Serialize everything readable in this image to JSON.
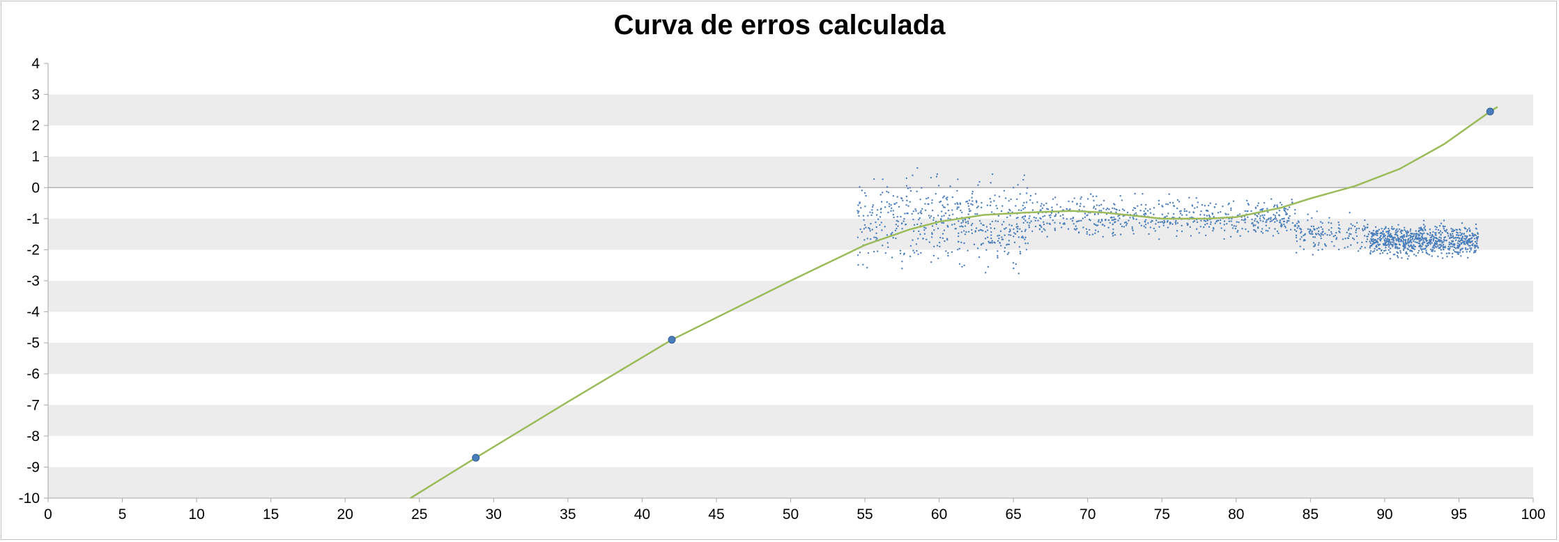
{
  "chart_data": {
    "type": "scatter",
    "title": "Curva de erros calculada",
    "xlabel": "",
    "ylabel": "",
    "xlim": [
      0,
      100
    ],
    "ylim": [
      -10,
      4
    ],
    "x_ticks": [
      "0",
      "5",
      "10",
      "15",
      "20",
      "25",
      "30",
      "35",
      "40",
      "45",
      "50",
      "55",
      "60",
      "65",
      "70",
      "75",
      "80",
      "85",
      "90",
      "95",
      "100"
    ],
    "y_ticks": [
      "4",
      "3",
      "2",
      "1",
      "0",
      "-1",
      "-2",
      "-3",
      "-4",
      "-5",
      "-6",
      "-7",
      "-8",
      "-9",
      "-10"
    ],
    "grid": "alternating horizontal bands",
    "legend": "none",
    "colors": {
      "points": "#4a7ebb",
      "curve": "#9bbb59",
      "band": "#ececec",
      "axis": "#a6a6a6"
    },
    "series": [
      {
        "kind": "highlighted_points",
        "points": [
          [
            28.8,
            -8.7
          ],
          [
            42.0,
            -4.9
          ],
          [
            97.1,
            2.45
          ]
        ]
      },
      {
        "kind": "scatter_cloud",
        "regions": [
          {
            "x_range": [
              54.5,
              66
            ],
            "y_center": -1.1,
            "y_spread": 1.3,
            "count": 500
          },
          {
            "x_range": [
              66,
              84
            ],
            "y_center": -0.95,
            "y_spread": 0.6,
            "count": 600
          },
          {
            "x_range": [
              84,
              89
            ],
            "y_center": -1.5,
            "y_spread": 0.5,
            "count": 150
          },
          {
            "x_range": [
              89,
              96.3
            ],
            "y_center": -1.7,
            "y_spread": 0.45,
            "count": 800
          }
        ]
      },
      {
        "kind": "fitted_curve",
        "points": [
          [
            24.4,
            -10.0
          ],
          [
            28.8,
            -8.7
          ],
          [
            35,
            -6.9
          ],
          [
            42,
            -4.9
          ],
          [
            50,
            -3.0
          ],
          [
            55,
            -1.85
          ],
          [
            58,
            -1.35
          ],
          [
            60,
            -1.1
          ],
          [
            63,
            -0.88
          ],
          [
            66,
            -0.8
          ],
          [
            69,
            -0.75
          ],
          [
            71,
            -0.8
          ],
          [
            73,
            -0.9
          ],
          [
            75,
            -1.0
          ],
          [
            78,
            -1.0
          ],
          [
            80,
            -0.95
          ],
          [
            83,
            -0.65
          ],
          [
            85,
            -0.35
          ],
          [
            88,
            0.05
          ],
          [
            91,
            0.6
          ],
          [
            94,
            1.4
          ],
          [
            97.1,
            2.45
          ],
          [
            97.6,
            2.6
          ]
        ]
      }
    ]
  }
}
